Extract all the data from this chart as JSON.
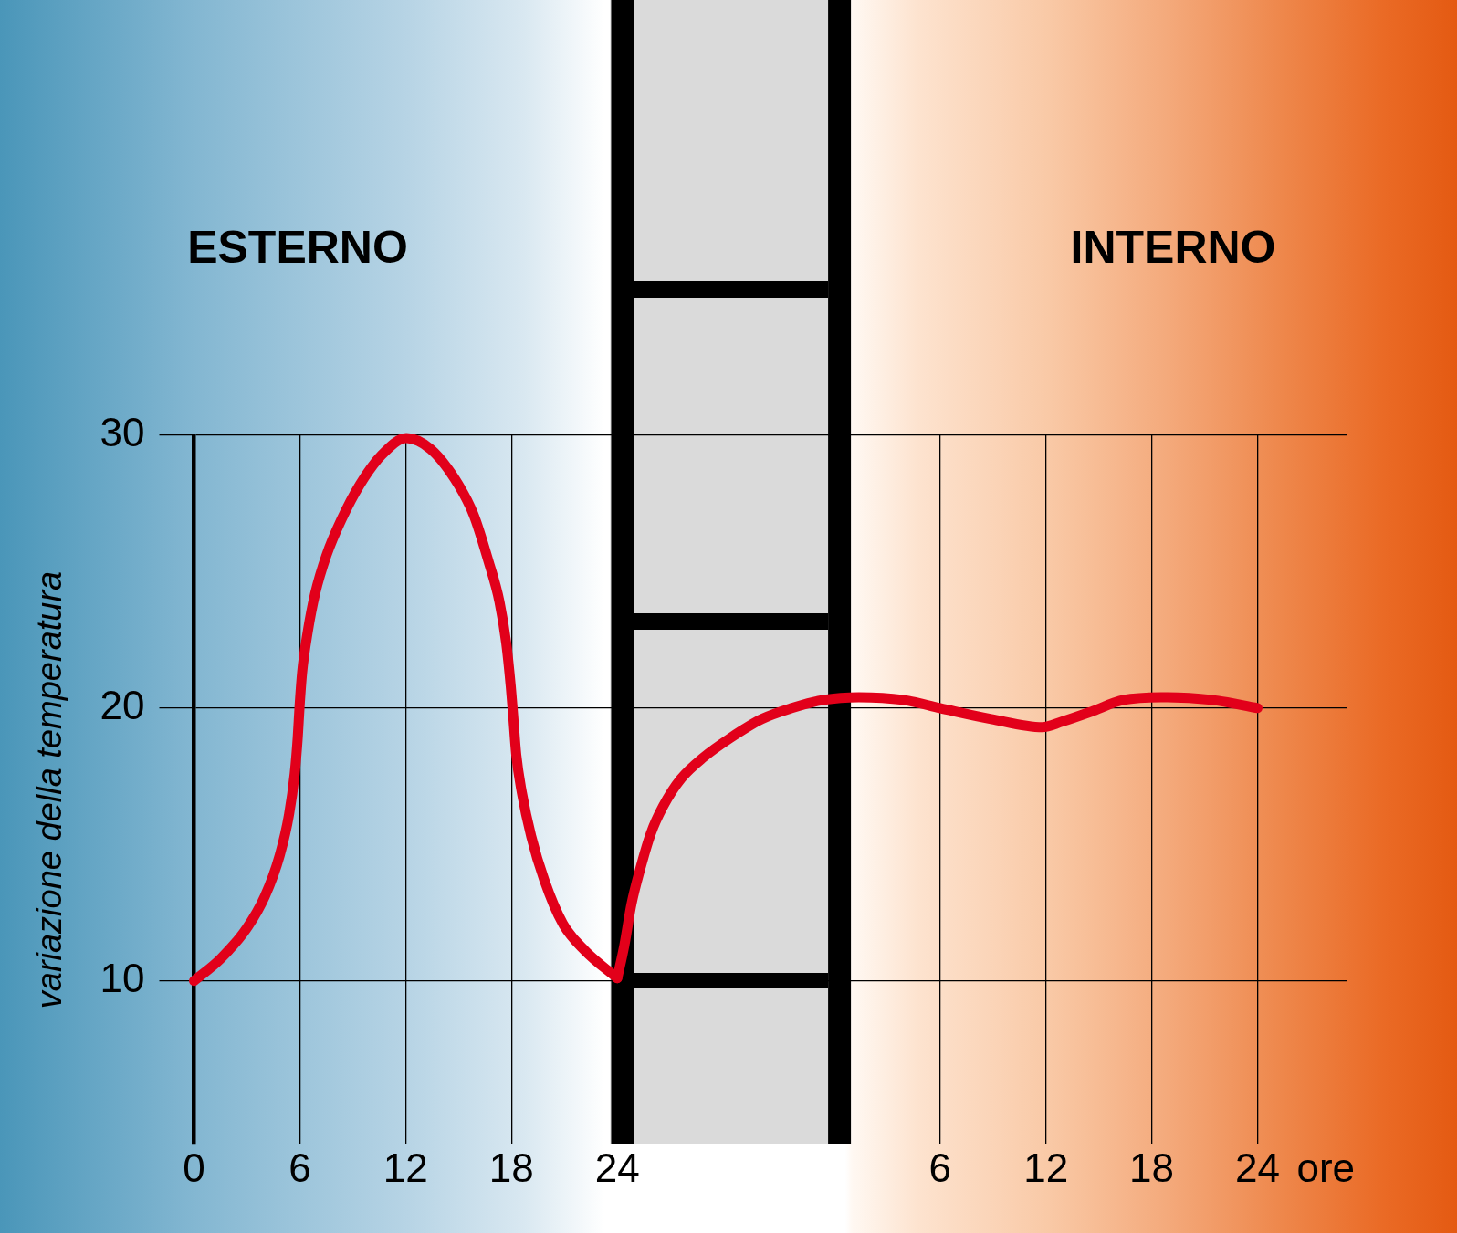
{
  "chart_data": {
    "type": "line",
    "ylabel": "variazione della temperatura",
    "xlabel": "ore",
    "annotations": [
      "ESTERNO",
      "INTERNO"
    ],
    "series": [
      {
        "color": "#e2001a",
        "x": [
          0,
          1.49,
          2.96,
          4.02,
          4.86,
          5.39,
          5.71,
          5.88,
          5.99,
          6.13,
          6.45,
          6.87,
          7.51,
          8.35,
          9.41,
          10.67,
          12.04,
          13.41,
          14.79,
          15.85,
          16.69,
          17.32,
          17.7,
          17.96,
          18.1,
          18.27,
          18.59,
          19.12,
          19.86,
          20.91,
          22.18,
          24.0
        ],
        "values": [
          10,
          10.8,
          11.9,
          13.1,
          14.6,
          16.1,
          17.6,
          18.9,
          20.1,
          21.3,
          22.8,
          24.2,
          25.6,
          26.9,
          28.2,
          29.3,
          29.9,
          29.5,
          28.4,
          27.1,
          25.4,
          23.9,
          22.4,
          20.8,
          19.7,
          18.3,
          16.9,
          15.3,
          13.7,
          12.1,
          11.1,
          10.1
        ]
      },
      {
        "color": "#e2001a",
        "axis": "x2",
        "x": [
          -12.3,
          -11.9,
          -11.5,
          -11.0,
          -10.4,
          -9.7,
          -8.7,
          -7.4,
          -5.9,
          -4.1,
          -2.4,
          -0.6,
          1.4,
          3.9,
          6.0,
          8.9,
          11.8,
          12.9,
          14.7,
          16.4,
          18.9,
          21.4,
          24.0
        ],
        "values": [
          10.1,
          11.3,
          12.8,
          14.1,
          15.4,
          16.4,
          17.4,
          18.2,
          18.9,
          19.6,
          20.0,
          20.3,
          20.4,
          20.3,
          20.0,
          19.6,
          19.3,
          19.5,
          19.9,
          20.3,
          20.4,
          20.3,
          20.0
        ]
      }
    ],
    "xlim": [
      0,
      65.4
    ],
    "xticks": [
      0,
      6,
      12,
      18,
      24
    ],
    "x2lim": [
      -36.3,
      29.1
    ],
    "x2ticks": [
      6,
      12,
      18,
      24
    ],
    "ylim": [
      4,
      30
    ],
    "yticks": [
      10,
      20,
      30
    ],
    "bands": [
      {
        "axis": "x",
        "from": 23.6,
        "to": 37.2,
        "color": "#dadada"
      }
    ],
    "ref_lines": [
      {
        "axis": "x",
        "value": 24.3,
        "color": "#000000"
      },
      {
        "axis": "x",
        "value": 36.6,
        "color": "#000000"
      }
    ],
    "grid": true,
    "legend": false,
    "marker": "none"
  }
}
